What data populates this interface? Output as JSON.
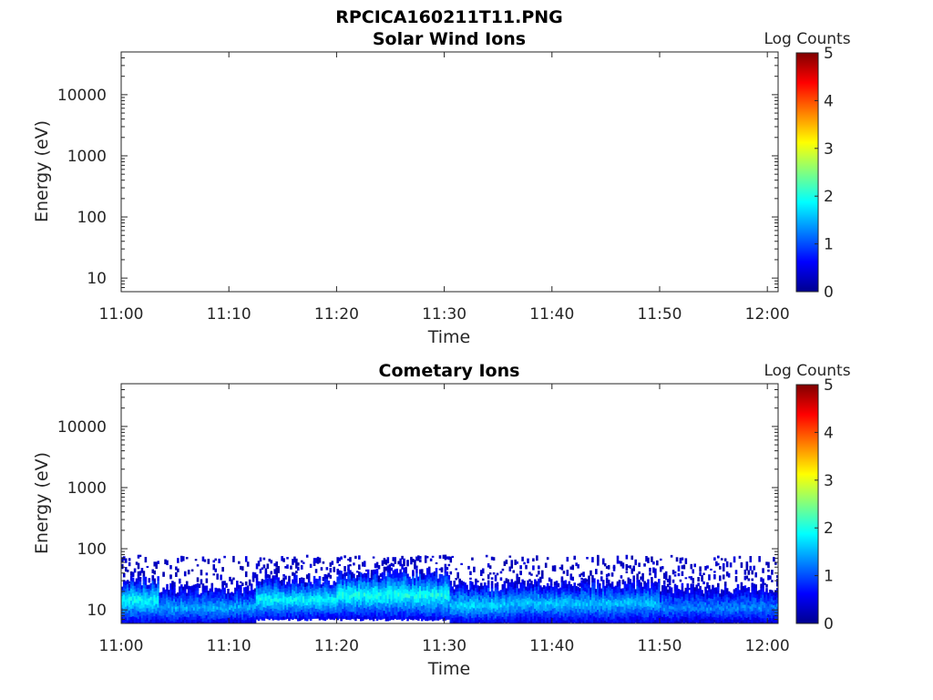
{
  "figure": {
    "filename": "RPCICA160211T11.PNG"
  },
  "colormap": [
    "#00008f",
    "#0000ff",
    "#0080ff",
    "#00ffff",
    "#80ff80",
    "#ffff00",
    "#ff8000",
    "#ff0000",
    "#800000"
  ],
  "chart_data": [
    {
      "type": "heatmap",
      "title": "Solar Wind Ions",
      "xlabel": "Time",
      "ylabel": "Energy (eV)",
      "x_ticks": [
        "11:00",
        "11:10",
        "11:20",
        "11:30",
        "11:40",
        "11:50",
        "12:00"
      ],
      "x_range_minutes": [
        0,
        61
      ],
      "y_scale": "log",
      "y_ticks": [
        10,
        100,
        1000,
        10000
      ],
      "y_tick_labels": [
        "10",
        "100",
        "1000",
        "10000"
      ],
      "y_range": [
        6,
        50000
      ],
      "colorbar": {
        "label": "Log Counts",
        "range": [
          0,
          5
        ],
        "ticks": [
          "0",
          "1",
          "2",
          "3",
          "4",
          "5"
        ]
      },
      "bands": []
    },
    {
      "type": "heatmap",
      "title": "Cometary Ions",
      "xlabel": "Time",
      "ylabel": "Energy (eV)",
      "x_ticks": [
        "11:00",
        "11:10",
        "11:20",
        "11:30",
        "11:40",
        "11:50",
        "12:00"
      ],
      "x_range_minutes": [
        0,
        61
      ],
      "y_scale": "log",
      "y_ticks": [
        10,
        100,
        1000,
        10000
      ],
      "y_tick_labels": [
        "10",
        "100",
        "1000",
        "10000"
      ],
      "y_range": [
        6,
        50000
      ],
      "colorbar": {
        "label": "Log Counts",
        "range": [
          0,
          5
        ],
        "ticks": [
          "0",
          "1",
          "2",
          "3",
          "4",
          "5"
        ]
      },
      "bands": [
        {
          "t_start": 0,
          "t_end": 3.5,
          "e_min": 6,
          "e_max": 30,
          "e_core": 15,
          "core_log_counts": 1.9
        },
        {
          "t_start": 3.5,
          "t_end": 12.5,
          "e_min": 6,
          "e_max": 22,
          "e_core": 11,
          "core_log_counts": 1.5
        },
        {
          "t_start": 12.5,
          "t_end": 20,
          "e_min": 7,
          "e_max": 30,
          "e_core": 15,
          "core_log_counts": 1.9
        },
        {
          "t_start": 20,
          "t_end": 30.5,
          "e_min": 7,
          "e_max": 40,
          "e_core": 18,
          "core_log_counts": 2.0
        },
        {
          "t_start": 30.5,
          "t_end": 36,
          "e_min": 6,
          "e_max": 25,
          "e_core": 12,
          "core_log_counts": 1.7
        },
        {
          "t_start": 36,
          "t_end": 50,
          "e_min": 6,
          "e_max": 27,
          "e_core": 13,
          "core_log_counts": 1.6
        },
        {
          "t_start": 50,
          "t_end": 61,
          "e_min": 6,
          "e_max": 22,
          "e_core": 11,
          "core_log_counts": 1.3
        }
      ],
      "sparse_upper_limit_eV": 80
    }
  ]
}
